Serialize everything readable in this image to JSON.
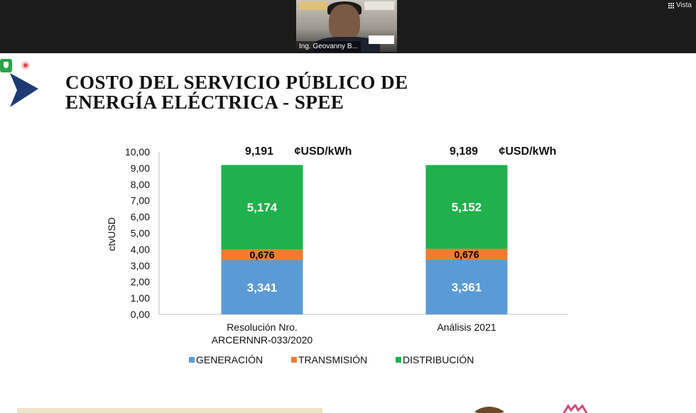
{
  "meeting": {
    "participant_name": "Ing. Geovanny B...",
    "view_label": "Vista"
  },
  "slide": {
    "title_line1": "COSTO DEL SERVICIO PÚBLICO DE",
    "title_line2": "ENERGÍA ELÉCTRICA - SPEE"
  },
  "colors": {
    "generacion": "#5b9bd5",
    "transmision": "#ed7d31",
    "distribucion": "#1fb14c"
  },
  "icons": [
    "security-shield-icon",
    "record-icon",
    "grid-view-icon",
    "brand-logo-icon"
  ],
  "chart_data": {
    "type": "bar",
    "stacked": true,
    "ylabel": "ctvUSD",
    "ylim": [
      0,
      10
    ],
    "y_ticks": [
      "0,00",
      "1,00",
      "2,00",
      "3,00",
      "4,00",
      "5,00",
      "6,00",
      "7,00",
      "8,00",
      "9,00",
      "10,00"
    ],
    "categories": [
      {
        "line1": "Resolución Nro.",
        "line2": "ARCERNNR-033/2020"
      },
      {
        "line1": "Análisis 2021",
        "line2": ""
      }
    ],
    "totals": [
      {
        "value": "9,191",
        "unit": "¢USD/kWh"
      },
      {
        "value": "9,189",
        "unit": "¢USD/kWh"
      }
    ],
    "series": [
      {
        "name": "GENERACIÓN",
        "color": "#5b9bd5",
        "values": [
          3.341,
          3.361
        ],
        "labels": [
          "3,341",
          "3,361"
        ],
        "label_color": "#ffffff"
      },
      {
        "name": "TRANSMISIÓN",
        "color": "#ed7d31",
        "values": [
          0.676,
          0.676
        ],
        "labels": [
          "0,676",
          "0,676"
        ],
        "label_color": "#000000"
      },
      {
        "name": "DISTRIBUCIÓN",
        "color": "#1fb14c",
        "values": [
          5.174,
          5.152
        ],
        "labels": [
          "5,174",
          "5,152"
        ],
        "label_color": "#ffffff"
      }
    ],
    "legend_position": "bottom",
    "grid": false
  }
}
